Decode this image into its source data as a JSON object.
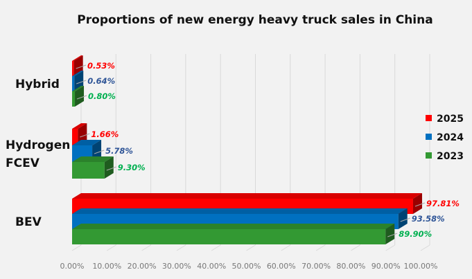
{
  "chart_data": {
    "type": "bar",
    "orientation": "horizontal",
    "style": "3d-clustered",
    "title": "Proportions of new energy heavy truck sales in China",
    "categories": [
      "Hybrid",
      "Hydrogen FCEV",
      "BEV"
    ],
    "category_lines": [
      [
        "Hybrid"
      ],
      [
        "Hydrogen",
        "FCEV"
      ],
      [
        "BEV"
      ]
    ],
    "series": [
      {
        "name": "2025",
        "color": "#ff0000",
        "label_color": "#ff0000",
        "values": [
          0.53,
          1.66,
          97.81
        ],
        "labels": [
          "0.53%",
          "1.66%",
          "97.81%"
        ]
      },
      {
        "name": "2024",
        "color": "#0070c0",
        "label_color": "#2f5597",
        "values": [
          0.64,
          5.78,
          93.58
        ],
        "labels": [
          "0.64%",
          "5.78%",
          "93.58%"
        ]
      },
      {
        "name": "2023",
        "color": "#339933",
        "label_color": "#00b050",
        "values": [
          0.8,
          9.3,
          89.9
        ],
        "labels": [
          "0.80%",
          "9.30%",
          "89.90%"
        ]
      }
    ],
    "xlim": [
      0,
      100
    ],
    "xticks": [
      "0.00%",
      "10.00%",
      "20.00%",
      "30.00%",
      "40.00%",
      "50.00%",
      "60.00%",
      "70.00%",
      "80.00%",
      "90.00%",
      "100.00%"
    ],
    "grid": true,
    "legend": "right"
  }
}
